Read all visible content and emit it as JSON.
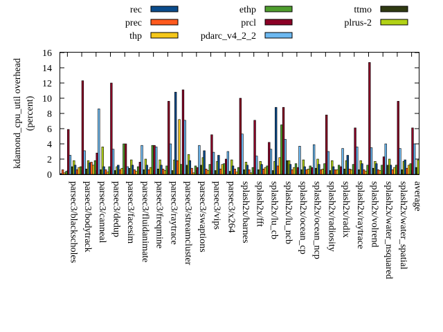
{
  "chart_data": {
    "type": "bar",
    "title": "",
    "xlabel": "",
    "ylabel": "kdamond_cpu_util overhead (percent)",
    "ylabel_lines": [
      "kdamond_cpu_util overhead",
      "(percent)"
    ],
    "ylim": [
      0,
      16
    ],
    "yticks": [
      "0",
      "2",
      "4",
      "6",
      "8",
      "10",
      "12",
      "14",
      "16"
    ],
    "grid": false,
    "legend_position": "top",
    "categories": [
      "parsec3/blackscholes",
      "parsec3/bodytrack",
      "parsec3/canneal",
      "parsec3/dedup",
      "parsec3/facesim",
      "parsec3/fluidanimate",
      "parsec3/freqmine",
      "parsec3/raytrace",
      "parsec3/streamcluster",
      "parsec3/swaptions",
      "parsec3/vips",
      "parsec3/x264",
      "splash2x/barnes",
      "splash2x/fft",
      "splash2x/lu_cb",
      "splash2x/lu_ncb",
      "splash2x/ocean_cp",
      "splash2x/ocean_ncp",
      "splash2x/radiosity",
      "splash2x/radix",
      "splash2x/raytrace",
      "splash2x/volrend",
      "splash2x/water_nsquared",
      "splash2x/water_spatial",
      "average"
    ],
    "series": [
      {
        "name": "rec",
        "color": "#0b4c8c",
        "values": [
          0.1,
          1.2,
          1.5,
          1.0,
          1.2,
          1.2,
          1.2,
          1.2,
          10.8,
          1.8,
          3.1,
          2.5,
          1.1,
          1.2,
          1.3,
          8.8,
          1.3,
          1.0,
          1.3,
          1.0,
          2.5,
          1.4,
          1.4,
          1.2,
          1.9
        ]
      },
      {
        "name": "prec",
        "color": "#ff5a1e",
        "values": [
          0.6,
          0.6,
          1.6,
          0.6,
          0.6,
          0.6,
          0.6,
          0.7,
          1.8,
          0.8,
          0.7,
          0.7,
          0.7,
          0.6,
          0.7,
          1.1,
          0.6,
          0.6,
          0.6,
          0.6,
          0.7,
          0.6,
          0.6,
          0.6,
          0.8
        ]
      },
      {
        "name": "thp",
        "color": "#f5c71a",
        "values": [
          0.2,
          0.9,
          1.2,
          0.3,
          0.8,
          0.4,
          0.9,
          0.5,
          7.2,
          0.2,
          0.5,
          1.3,
          0.3,
          0.2,
          0.9,
          2.2,
          0.9,
          0.7,
          0.7,
          0.6,
          0.6,
          0.4,
          0.5,
          0.9,
          1.2
        ]
      },
      {
        "name": "ethp",
        "color": "#4f9e2e",
        "values": [
          0.4,
          1.0,
          1.8,
          1.0,
          4.0,
          1.0,
          3.8,
          1.1,
          1.3,
          1.1,
          1.3,
          1.4,
          0.9,
          0.9,
          1.1,
          6.5,
          1.4,
          1.1,
          1.4,
          1.2,
          1.3,
          1.2,
          1.2,
          1.2,
          1.4
        ]
      },
      {
        "name": "prcl",
        "color": "#8b0026",
        "values": [
          5.9,
          12.3,
          2.8,
          12.0,
          4.0,
          1.6,
          3.8,
          9.6,
          11.1,
          0.9,
          5.2,
          2.0,
          10.0,
          7.1,
          4.2,
          8.8,
          0.9,
          0.9,
          7.8,
          1.0,
          6.1,
          14.7,
          2.3,
          9.6,
          6.1
        ]
      },
      {
        "name": "pdarc_v4_2_2",
        "color": "#6cb8f0",
        "values": [
          2.5,
          3.1,
          8.6,
          3.3,
          1.0,
          3.8,
          3.6,
          4.0,
          7.1,
          3.8,
          2.9,
          3.0,
          5.3,
          2.4,
          3.3,
          4.6,
          3.7,
          3.9,
          3.0,
          3.4,
          3.6,
          3.5,
          4.0,
          3.4,
          4.0
        ]
      },
      {
        "name": "ttmo",
        "color": "#2f3a12",
        "values": [
          1.0,
          0.7,
          0.6,
          0.5,
          0.8,
          0.6,
          0.7,
          0.5,
          1.2,
          1.2,
          0.5,
          0.4,
          0.6,
          0.6,
          0.5,
          1.8,
          0.6,
          0.8,
          0.5,
          0.7,
          0.6,
          0.8,
          1.2,
          0.6,
          0.9
        ]
      },
      {
        "name": "plrus-2",
        "color": "#b2d216",
        "values": [
          1.8,
          1.8,
          3.6,
          1.0,
          1.9,
          2.0,
          1.9,
          1.9,
          2.6,
          2.2,
          1.7,
          1.9,
          1.6,
          1.7,
          1.7,
          1.8,
          1.9,
          2.0,
          1.8,
          1.8,
          1.8,
          1.7,
          2.0,
          1.7,
          1.9
        ]
      }
    ]
  }
}
